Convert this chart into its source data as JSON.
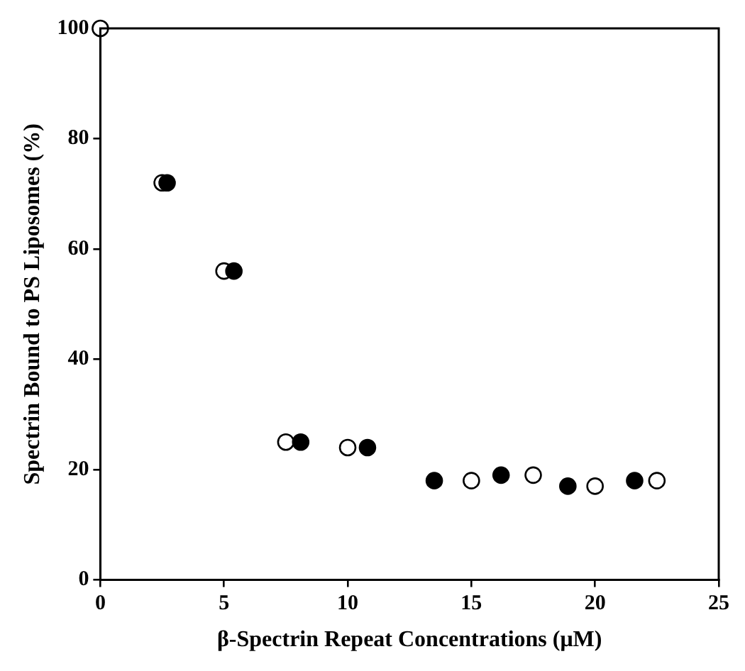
{
  "chart_data": {
    "type": "scatter",
    "xlabel": "β-Spectrin Repeat Concentrations (μM)",
    "ylabel": "Spectrin Bound to PS Liposomes (%)",
    "xlim": [
      0,
      25
    ],
    "xticks": [
      0,
      5,
      10,
      15,
      20,
      25
    ],
    "ylim": [
      0,
      100
    ],
    "yticks": [
      0,
      20,
      40,
      60,
      80,
      100
    ],
    "grid": false,
    "legend": false,
    "marker": "circle",
    "series": [
      {
        "color": "#000000",
        "x": [
          2.7,
          5.4,
          8.1,
          10.8,
          13.5,
          16.2,
          18.9,
          21.6
        ],
        "values": [
          72,
          56,
          25,
          24,
          18,
          19,
          17,
          18
        ]
      },
      {
        "color": "#ffffff",
        "x": [
          0,
          2.5,
          5,
          7.5,
          10,
          15,
          17.5,
          20,
          22.5
        ],
        "values": [
          100,
          72,
          56,
          25,
          24,
          18,
          19,
          17,
          18
        ]
      }
    ]
  }
}
